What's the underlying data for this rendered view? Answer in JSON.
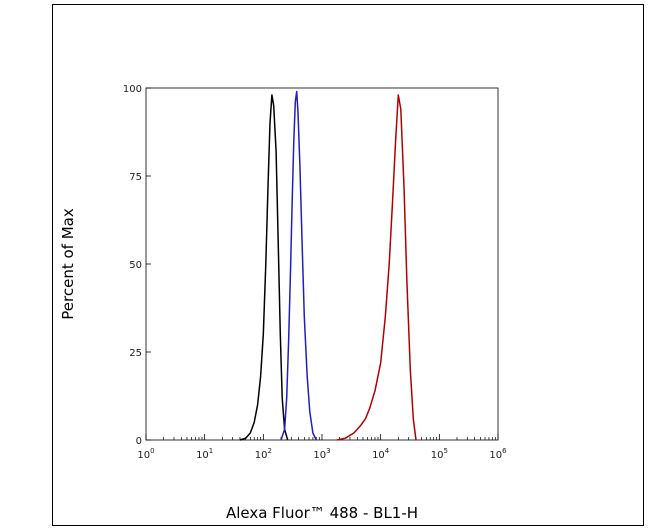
{
  "chart_data": {
    "type": "line",
    "title": "",
    "xlabel": "Alexa Fluor™ 488 - BL1-H",
    "ylabel": "Percent of Max",
    "xscale": "log",
    "xlim": [
      1,
      1000000
    ],
    "ylim": [
      0,
      100
    ],
    "grid": false,
    "legend": "none",
    "x_ticks": [
      {
        "value": 1,
        "base": "10",
        "exp": "0"
      },
      {
        "value": 10,
        "base": "10",
        "exp": "1"
      },
      {
        "value": 100,
        "base": "10",
        "exp": "2"
      },
      {
        "value": 1000,
        "base": "10",
        "exp": "3"
      },
      {
        "value": 10000,
        "base": "10",
        "exp": "4"
      },
      {
        "value": 100000,
        "base": "10",
        "exp": "5"
      },
      {
        "value": 1000000,
        "base": "10",
        "exp": "6"
      }
    ],
    "y_ticks": [
      {
        "value": 0,
        "label": "0"
      },
      {
        "value": 25,
        "label": "25"
      },
      {
        "value": 50,
        "label": "50"
      },
      {
        "value": 75,
        "label": "75"
      },
      {
        "value": 100,
        "label": "100"
      }
    ],
    "series": [
      {
        "color": "#000000",
        "x": [
          40,
          50,
          60,
          70,
          80,
          90,
          100,
          110,
          120,
          130,
          140,
          150,
          165,
          180,
          195,
          210,
          230,
          260
        ],
        "y": [
          0,
          0.5,
          2,
          5,
          10,
          18,
          30,
          50,
          72,
          90,
          98,
          95,
          82,
          55,
          30,
          12,
          3,
          0
        ]
      },
      {
        "color": "#1f1fbf",
        "x": [
          200,
          230,
          250,
          270,
          290,
          310,
          330,
          350,
          370,
          390,
          420,
          460,
          500,
          560,
          620,
          700,
          800
        ],
        "y": [
          0,
          3,
          12,
          28,
          48,
          68,
          85,
          96,
          99,
          93,
          78,
          55,
          35,
          18,
          8,
          2,
          0
        ]
      },
      {
        "color": "#b00000",
        "x": [
          1800,
          2500,
          3500,
          4500,
          5500,
          6500,
          8000,
          10000,
          12000,
          14000,
          16000,
          18000,
          20000,
          22000,
          25000,
          28000,
          32000,
          36000,
          40000
        ],
        "y": [
          0,
          0.5,
          2,
          4,
          6,
          9,
          14,
          22,
          35,
          50,
          68,
          85,
          98,
          94,
          72,
          45,
          20,
          6,
          0
        ]
      }
    ]
  }
}
